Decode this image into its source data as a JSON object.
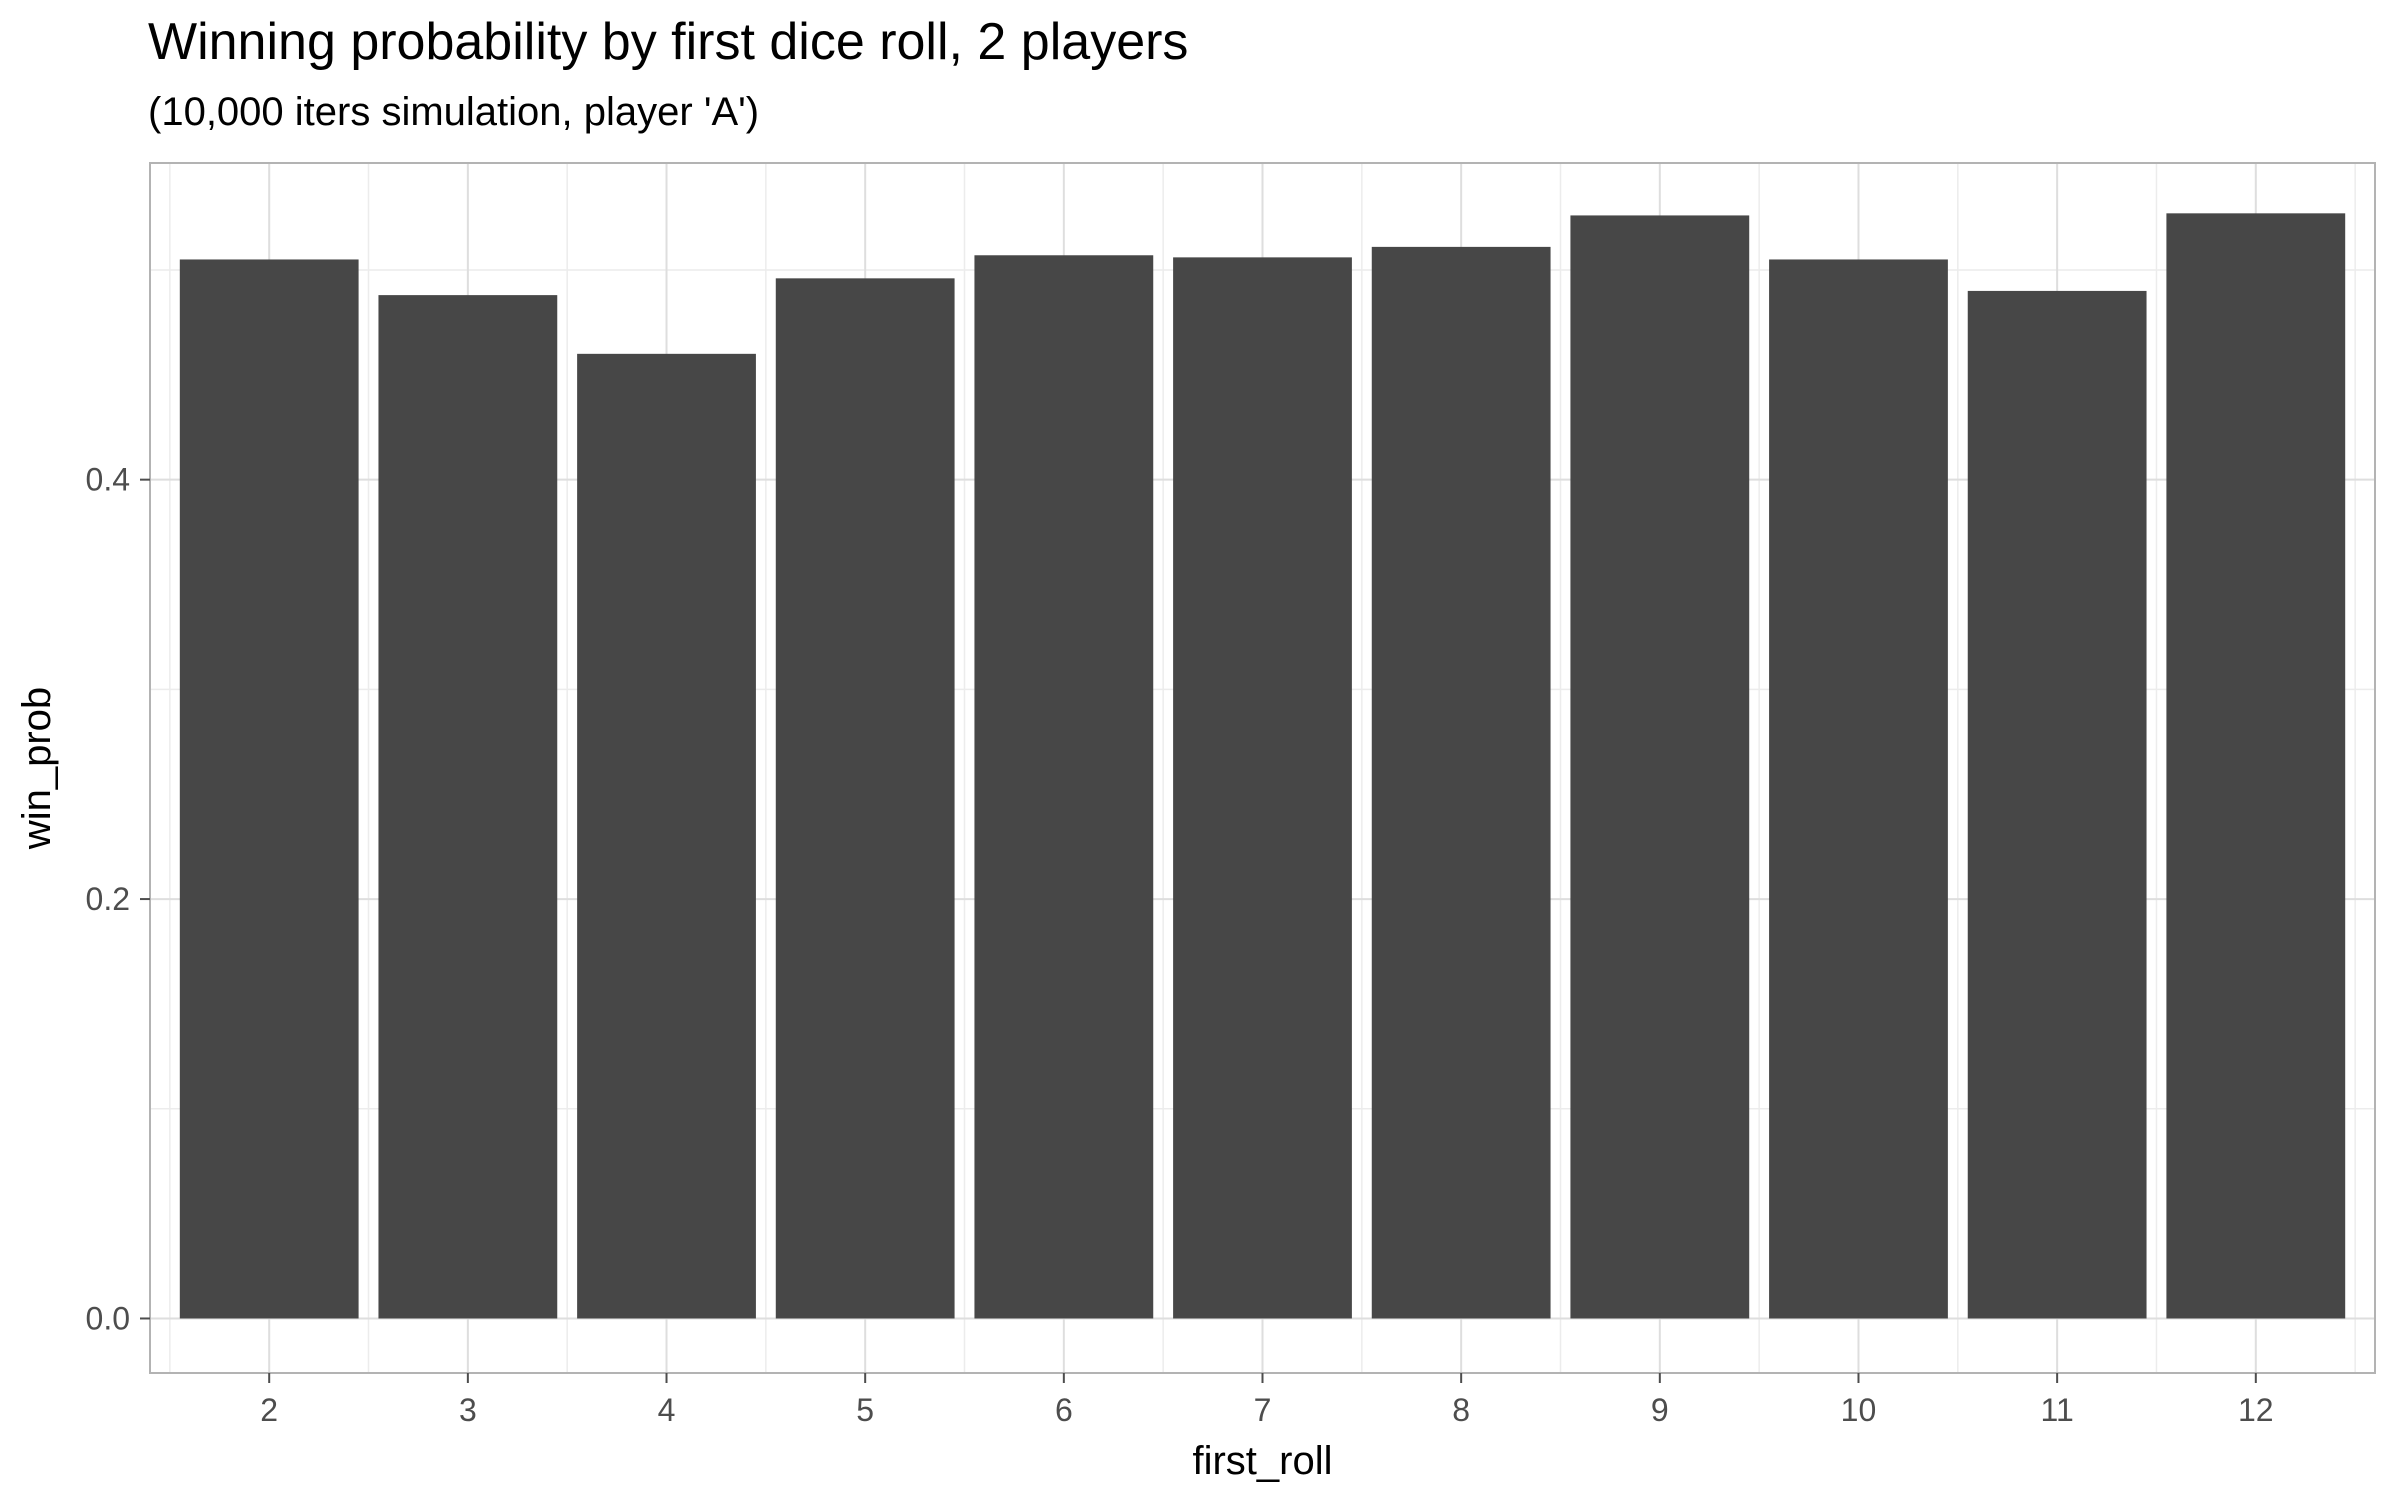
{
  "chart_data": {
    "type": "bar",
    "title": "Winning probability by first dice roll, 2 players",
    "subtitle": "(10,000 iters simulation, player 'A')",
    "xlabel": "first_roll",
    "ylabel": "win_prob",
    "categories": [
      "2",
      "3",
      "4",
      "5",
      "6",
      "7",
      "8",
      "9",
      "10",
      "11",
      "12"
    ],
    "values": [
      0.505,
      0.488,
      0.46,
      0.496,
      0.507,
      0.506,
      0.511,
      0.526,
      0.505,
      0.49,
      0.527
    ],
    "ylim": [
      -0.026,
      0.551
    ],
    "yticks": [
      0.0,
      0.2,
      0.4
    ],
    "ytick_labels": [
      "0.0",
      "0.2",
      "0.4"
    ],
    "grid": true,
    "bar_color": "#474747",
    "panel_border_color": "#b3b3b3",
    "grid_major_color": "#dedede",
    "grid_minor_color": "#ececec"
  }
}
